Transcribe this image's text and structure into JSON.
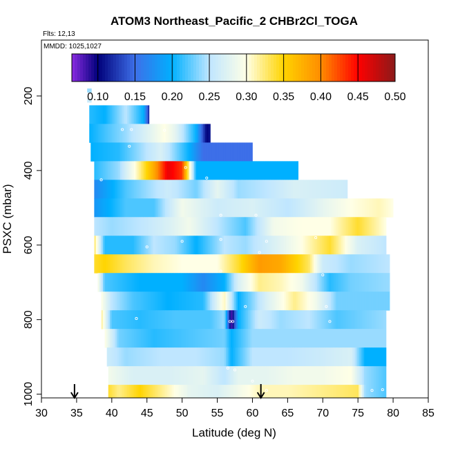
{
  "chart_data": {
    "type": "heatmap",
    "title": "ATOM3 Northeast_Pacific_2 CHBr2Cl_TOGA",
    "flights_label": "Flts: 12,13",
    "dates_label": "MMDD: 1025,1027",
    "xlabel": "Latitude (deg N)",
    "ylabel": "PSXC (mbar)",
    "xlim": [
      30,
      85
    ],
    "ylim": [
      1010,
      50
    ],
    "xticks": [
      30,
      35,
      40,
      45,
      50,
      55,
      60,
      65,
      70,
      75,
      80,
      85
    ],
    "yticks": [
      200,
      400,
      600,
      800,
      1000
    ],
    "colorbar": {
      "range": [
        0.065,
        0.5
      ],
      "ticks": [
        0.1,
        0.15,
        0.2,
        0.25,
        0.3,
        0.35,
        0.4,
        0.45,
        0.5
      ],
      "tick_labels": [
        "0.10",
        "0.15",
        "0.20",
        "0.25",
        "0.30",
        "0.35",
        "0.40",
        "0.45",
        "0.50"
      ],
      "stops": [
        {
          "v": 0.065,
          "color": "#8a2be2"
        },
        {
          "v": 0.1,
          "color": "#00007a"
        },
        {
          "v": 0.15,
          "color": "#3d6fe8"
        },
        {
          "v": 0.2,
          "color": "#00b0ff"
        },
        {
          "v": 0.25,
          "color": "#bfe6ff"
        },
        {
          "v": 0.3,
          "color": "#ffffe6"
        },
        {
          "v": 0.35,
          "color": "#ffd400"
        },
        {
          "v": 0.4,
          "color": "#ff8c00"
        },
        {
          "v": 0.45,
          "color": "#ff0000"
        },
        {
          "v": 0.5,
          "color": "#8b1a1a"
        }
      ]
    },
    "bands": [
      {
        "p": 185,
        "dp": 10,
        "lat0": 36.5,
        "lat1": 37.1,
        "segments": [
          [
            36.5,
            0.24
          ],
          [
            37.1,
            0.24
          ]
        ]
      },
      {
        "p": 212,
        "dp": 10,
        "lat0": 36.5,
        "lat1": 37.1,
        "segments": [
          [
            36.5,
            0.26
          ],
          [
            37.1,
            0.26
          ]
        ]
      },
      {
        "p": 250,
        "dp": 50,
        "lat0": 36.8,
        "lat1": 45.3,
        "segments": [
          [
            36.8,
            0.21
          ],
          [
            39,
            0.2
          ],
          [
            42,
            0.25
          ],
          [
            44.5,
            0.2
          ],
          [
            45.3,
            0.12
          ]
        ]
      },
      {
        "p": 300,
        "dp": 50,
        "lat0": 36.8,
        "lat1": 54.0,
        "segments": [
          [
            36.8,
            0.2
          ],
          [
            42,
            0.24
          ],
          [
            47.5,
            0.3
          ],
          [
            49,
            0.28
          ],
          [
            52,
            0.2
          ],
          [
            53.5,
            0.1
          ],
          [
            54.0,
            0.11
          ]
        ]
      },
      {
        "p": 350,
        "dp": 50,
        "lat0": 37.0,
        "lat1": 60.0,
        "segments": [
          [
            37.0,
            0.2
          ],
          [
            41,
            0.21
          ],
          [
            45,
            0.25
          ],
          [
            47,
            0.27
          ],
          [
            51,
            0.2
          ],
          [
            53,
            0.15
          ],
          [
            60.0,
            0.15
          ]
        ]
      },
      {
        "p": 400,
        "dp": 50,
        "lat0": 37.5,
        "lat1": 66.5,
        "segments": [
          [
            37.5,
            0.21
          ],
          [
            41,
            0.24
          ],
          [
            44,
            0.32
          ],
          [
            46,
            0.38
          ],
          [
            48,
            0.46
          ],
          [
            50,
            0.43
          ],
          [
            52,
            0.2
          ],
          [
            58,
            0.2
          ],
          [
            66.5,
            0.2
          ]
        ]
      },
      {
        "p": 450,
        "dp": 50,
        "lat0": 37.5,
        "lat1": 73.5,
        "segments": [
          [
            37.5,
            0.17
          ],
          [
            42,
            0.22
          ],
          [
            48,
            0.26
          ],
          [
            52,
            0.23
          ],
          [
            55,
            0.28
          ],
          [
            58,
            0.24
          ],
          [
            62,
            0.25
          ],
          [
            66,
            0.27
          ],
          [
            73.5,
            0.26
          ]
        ]
      },
      {
        "p": 500,
        "dp": 50,
        "lat0": 37.5,
        "lat1": 80.0,
        "segments": [
          [
            37.5,
            0.18
          ],
          [
            42,
            0.22
          ],
          [
            46,
            0.22
          ],
          [
            50,
            0.29
          ],
          [
            55,
            0.26
          ],
          [
            60,
            0.27
          ],
          [
            65,
            0.25
          ],
          [
            70,
            0.28
          ],
          [
            74,
            0.3
          ],
          [
            78,
            0.31
          ],
          [
            80.0,
            0.3
          ]
        ]
      },
      {
        "p": 550,
        "dp": 50,
        "lat0": 37.5,
        "lat1": 79.0,
        "segments": [
          [
            37.5,
            0.25
          ],
          [
            40,
            0.24
          ],
          [
            44,
            0.25
          ],
          [
            48,
            0.27
          ],
          [
            51,
            0.29
          ],
          [
            55,
            0.25
          ],
          [
            59,
            0.22
          ],
          [
            63,
            0.29
          ],
          [
            67,
            0.3
          ],
          [
            71,
            0.3
          ],
          [
            75,
            0.34
          ],
          [
            79.0,
            0.3
          ]
        ]
      },
      {
        "p": 600,
        "dp": 50,
        "lat0": 37.5,
        "lat1": 79.0,
        "segments": [
          [
            37.5,
            0.33
          ],
          [
            39,
            0.21
          ],
          [
            43,
            0.21
          ],
          [
            46,
            0.25
          ],
          [
            49,
            0.24
          ],
          [
            52,
            0.2
          ],
          [
            56,
            0.25
          ],
          [
            59,
            0.24
          ],
          [
            63,
            0.27
          ],
          [
            67,
            0.3
          ],
          [
            71,
            0.34
          ],
          [
            75,
            0.27
          ],
          [
            79.0,
            0.25
          ]
        ]
      },
      {
        "p": 650,
        "dp": 50,
        "lat0": 37.5,
        "lat1": 79.5,
        "segments": [
          [
            37.5,
            0.34
          ],
          [
            39,
            0.35
          ],
          [
            42,
            0.33
          ],
          [
            46,
            0.31
          ],
          [
            50,
            0.3
          ],
          [
            55,
            0.3
          ],
          [
            58,
            0.34
          ],
          [
            61,
            0.39
          ],
          [
            64,
            0.38
          ],
          [
            68,
            0.33
          ],
          [
            70,
            0.26
          ],
          [
            74,
            0.24
          ],
          [
            79.5,
            0.25
          ]
        ]
      },
      {
        "p": 700,
        "dp": 50,
        "lat0": 38.0,
        "lat1": 79.5,
        "segments": [
          [
            38.0,
            0.3
          ],
          [
            39,
            0.22
          ],
          [
            44,
            0.2
          ],
          [
            50,
            0.2
          ],
          [
            53,
            0.17
          ],
          [
            56,
            0.2
          ],
          [
            58,
            0.27
          ],
          [
            61,
            0.32
          ],
          [
            64,
            0.31
          ],
          [
            67,
            0.29
          ],
          [
            69,
            0.25
          ],
          [
            71,
            0.21
          ],
          [
            74,
            0.23
          ],
          [
            79.5,
            0.24
          ]
        ]
      },
      {
        "p": 750,
        "dp": 50,
        "lat0": 38.5,
        "lat1": 79.5,
        "segments": [
          [
            38.5,
            0.3
          ],
          [
            40,
            0.25
          ],
          [
            43,
            0.22
          ],
          [
            48,
            0.2
          ],
          [
            53,
            0.21
          ],
          [
            56,
            0.31
          ],
          [
            58,
            0.2
          ],
          [
            62,
            0.27
          ],
          [
            66,
            0.32
          ],
          [
            69,
            0.29
          ],
          [
            72,
            0.23
          ],
          [
            79.5,
            0.23
          ]
        ]
      },
      {
        "p": 800,
        "dp": 50,
        "lat0": 38.5,
        "lat1": 79.0,
        "segments": [
          [
            38.5,
            0.32
          ],
          [
            40,
            0.22
          ],
          [
            44,
            0.21
          ],
          [
            49,
            0.22
          ],
          [
            54,
            0.22
          ],
          [
            56,
            0.24
          ],
          [
            57,
            0.08
          ],
          [
            58,
            0.2
          ],
          [
            61,
            0.26
          ],
          [
            64,
            0.24
          ],
          [
            68,
            0.25
          ],
          [
            72,
            0.22
          ],
          [
            79.0,
            0.24
          ]
        ]
      },
      {
        "p": 850,
        "dp": 50,
        "lat0": 39.0,
        "lat1": 79.0,
        "segments": [
          [
            39.0,
            0.3
          ],
          [
            41,
            0.23
          ],
          [
            46,
            0.21
          ],
          [
            51,
            0.22
          ],
          [
            56,
            0.23
          ],
          [
            57,
            0.2
          ],
          [
            60,
            0.24
          ],
          [
            65,
            0.24
          ],
          [
            70,
            0.24
          ],
          [
            75,
            0.24
          ],
          [
            79.0,
            0.24
          ]
        ]
      },
      {
        "p": 900,
        "dp": 50,
        "lat0": 39.3,
        "lat1": 79.0,
        "segments": [
          [
            39.3,
            0.26
          ],
          [
            42,
            0.24
          ],
          [
            47,
            0.25
          ],
          [
            52,
            0.25
          ],
          [
            56,
            0.24
          ],
          [
            57,
            0.2
          ],
          [
            60,
            0.25
          ],
          [
            65,
            0.25
          ],
          [
            70,
            0.26
          ],
          [
            74,
            0.27
          ],
          [
            76,
            0.2
          ],
          [
            79.0,
            0.2
          ]
        ]
      },
      {
        "p": 950,
        "dp": 50,
        "lat0": 39.5,
        "lat1": 79.0,
        "segments": [
          [
            39.5,
            0.29
          ],
          [
            43,
            0.27
          ],
          [
            48,
            0.27
          ],
          [
            53,
            0.28
          ],
          [
            56,
            0.25
          ],
          [
            58,
            0.28
          ],
          [
            62,
            0.28
          ],
          [
            66,
            0.29
          ],
          [
            70,
            0.29
          ],
          [
            74,
            0.3
          ],
          [
            76,
            0.24
          ],
          [
            79.0,
            0.22
          ]
        ]
      },
      {
        "p": 995,
        "dp": 40,
        "lat0": 39.5,
        "lat1": 79.0,
        "segments": [
          [
            39.5,
            0.34
          ],
          [
            41,
            0.32
          ],
          [
            44,
            0.35
          ],
          [
            47,
            0.32
          ],
          [
            51,
            0.28
          ],
          [
            55,
            0.27
          ],
          [
            58,
            0.29
          ],
          [
            61,
            0.31
          ],
          [
            65,
            0.31
          ],
          [
            70,
            0.32
          ],
          [
            75,
            0.33
          ],
          [
            76,
            0.24
          ],
          [
            79.0,
            0.22
          ]
        ]
      }
    ],
    "markers": [
      {
        "lat": 36.8,
        "p": 205
      },
      {
        "lat": 41.5,
        "p": 290
      },
      {
        "lat": 42.8,
        "p": 290
      },
      {
        "lat": 42.5,
        "p": 335
      },
      {
        "lat": 47.5,
        "p": 292
      },
      {
        "lat": 50.5,
        "p": 392
      },
      {
        "lat": 38.5,
        "p": 425
      },
      {
        "lat": 53.5,
        "p": 420
      },
      {
        "lat": 55.5,
        "p": 520
      },
      {
        "lat": 60.5,
        "p": 520
      },
      {
        "lat": 45.0,
        "p": 605
      },
      {
        "lat": 50.0,
        "p": 590
      },
      {
        "lat": 55.5,
        "p": 585
      },
      {
        "lat": 62.0,
        "p": 590
      },
      {
        "lat": 69.0,
        "p": 580
      },
      {
        "lat": 55.5,
        "p": 670
      },
      {
        "lat": 61.0,
        "p": 620
      },
      {
        "lat": 70.0,
        "p": 680
      },
      {
        "lat": 59.0,
        "p": 765
      },
      {
        "lat": 70.5,
        "p": 765
      },
      {
        "lat": 43.5,
        "p": 797
      },
      {
        "lat": 56.8,
        "p": 805
      },
      {
        "lat": 57.2,
        "p": 805
      },
      {
        "lat": 71.0,
        "p": 805
      },
      {
        "lat": 56.5,
        "p": 930
      },
      {
        "lat": 57.5,
        "p": 935
      },
      {
        "lat": 60.0,
        "p": 965
      },
      {
        "lat": 62.0,
        "p": 990
      },
      {
        "lat": 77.0,
        "p": 990
      },
      {
        "lat": 78.5,
        "p": 988
      }
    ],
    "arrows": [
      {
        "lat": 34.7,
        "label": "start"
      },
      {
        "lat": 61.2,
        "label": "end"
      }
    ]
  }
}
